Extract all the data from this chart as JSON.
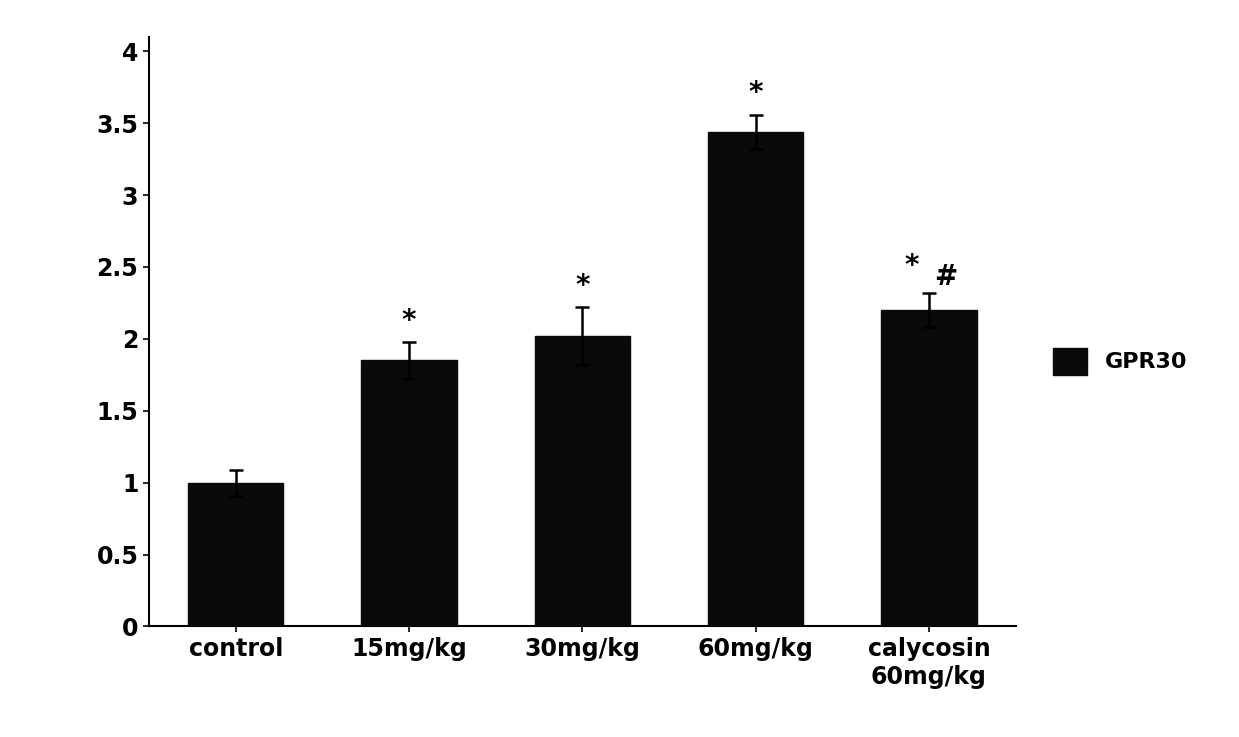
{
  "categories": [
    "control",
    "15mg/kg",
    "30mg/kg",
    "60mg/kg",
    "calycosin\n60mg/kg"
  ],
  "values": [
    1.0,
    1.85,
    2.02,
    3.44,
    2.2
  ],
  "errors": [
    0.09,
    0.13,
    0.2,
    0.12,
    0.12
  ],
  "bar_color": "#0a0a0a",
  "bar_width": 0.55,
  "ylim": [
    0,
    4.1
  ],
  "yticks": [
    0,
    0.5,
    1.0,
    1.5,
    2.0,
    2.5,
    3.0,
    3.5,
    4.0
  ],
  "ytick_labels": [
    "0",
    "0.5",
    "1",
    "1.5",
    "2",
    "2.5",
    "3",
    "3.5",
    "4"
  ],
  "legend_label": "GPR30",
  "legend_color": "#0a0a0a",
  "background_color": "#ffffff",
  "error_cap_size": 5,
  "error_line_width": 1.8,
  "tick_fontsize": 17,
  "annotation_fontsize": 20,
  "legend_fontsize": 16,
  "spine_linewidth": 1.5
}
